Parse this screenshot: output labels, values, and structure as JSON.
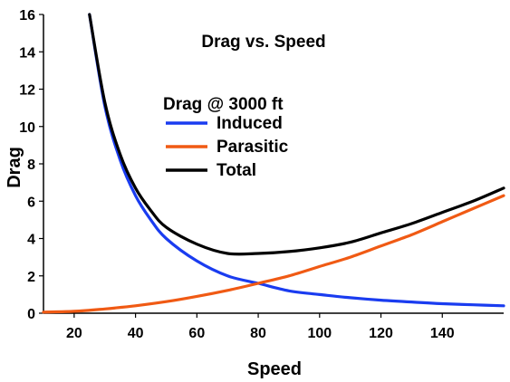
{
  "chart_data": {
    "type": "line",
    "title": "Drag vs. Speed",
    "legend_title": "Drag @ 3000 ft",
    "legend_placement": "upper-center",
    "xlabel": "Speed",
    "ylabel": "Drag",
    "xlim": [
      10,
      160
    ],
    "ylim": [
      0,
      16
    ],
    "xticks": [
      20,
      40,
      60,
      80,
      100,
      120,
      140
    ],
    "yticks": [
      0,
      2,
      4,
      6,
      8,
      10,
      12,
      14,
      16
    ],
    "grid": false,
    "series": [
      {
        "name": "Induced",
        "color": "#1a3cf0",
        "x": [
          25,
          30,
          35,
          40,
          45,
          50,
          60,
          70,
          80,
          90,
          100,
          110,
          120,
          130,
          140,
          150,
          160
        ],
        "y": [
          16.0,
          11.1,
          8.2,
          6.3,
          5.0,
          4.0,
          2.8,
          2.0,
          1.6,
          1.2,
          1.0,
          0.83,
          0.7,
          0.6,
          0.51,
          0.45,
          0.4
        ]
      },
      {
        "name": "Parasitic",
        "color": "#f05a14",
        "x": [
          10,
          20,
          30,
          40,
          50,
          60,
          70,
          80,
          90,
          100,
          110,
          120,
          130,
          140,
          150,
          160
        ],
        "y": [
          0.06,
          0.1,
          0.23,
          0.4,
          0.62,
          0.9,
          1.22,
          1.6,
          2.0,
          2.5,
          3.0,
          3.6,
          4.2,
          4.9,
          5.6,
          6.3
        ]
      },
      {
        "name": "Total",
        "color": "#000000",
        "x": [
          25,
          30,
          35,
          40,
          45,
          50,
          60,
          70,
          80,
          90,
          100,
          110,
          120,
          130,
          140,
          150,
          160
        ],
        "y": [
          16.0,
          11.3,
          8.5,
          6.7,
          5.5,
          4.6,
          3.7,
          3.2,
          3.2,
          3.3,
          3.5,
          3.8,
          4.3,
          4.8,
          5.4,
          6.0,
          6.7
        ]
      }
    ]
  }
}
